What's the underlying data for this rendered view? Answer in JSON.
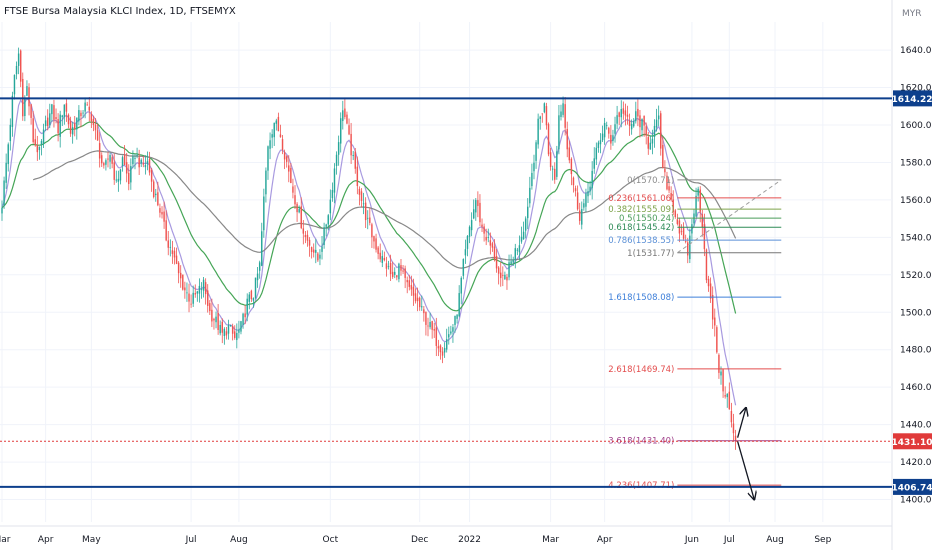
{
  "chart_data": {
    "type": "candlestick",
    "title": "FTSE Bursa Malaysia KLCI Index, 1D, FTSEMYX",
    "currency": "MYR",
    "y_range": [
      1388,
      1655
    ],
    "y_ticks": [
      1400,
      1420,
      1440,
      1460,
      1480,
      1500,
      1520,
      1540,
      1560,
      1580,
      1600,
      1620,
      1640
    ],
    "x_ticks": [
      "Mar",
      "Apr",
      "May",
      "Jul",
      "Aug",
      "Oct",
      "Dec",
      "2022",
      "Mar",
      "Apr",
      "Jun",
      "Jul",
      "Aug",
      "Sep"
    ],
    "x_tick_index": [
      0,
      21,
      43,
      91,
      114,
      158,
      201,
      225,
      264,
      290,
      332,
      350,
      372,
      395
    ],
    "horizontal_levels": [
      {
        "name": "resistance",
        "value": 1614.22,
        "label": "1614.22",
        "color": "#0d3f8c"
      },
      {
        "name": "support",
        "value": 1406.74,
        "label": "1406.74",
        "color": "#0d3f8c"
      },
      {
        "name": "last-price",
        "value": 1431.1,
        "label": "1431.10",
        "color": "#e03a3a"
      }
    ],
    "fibonacci": {
      "x_start_index": 325,
      "x_end_index": 375,
      "levels": [
        {
          "ratio": "0",
          "value": 1570.71,
          "label": "0(1570.71)",
          "color": "#8c8c8c"
        },
        {
          "ratio": "0.236",
          "value": 1561.06,
          "label": "0.236(1561.06)",
          "color": "#e34d4d"
        },
        {
          "ratio": "0.382",
          "value": 1555.09,
          "label": "0.382(1555.09)",
          "color": "#7ea34a"
        },
        {
          "ratio": "0.5",
          "value": 1550.24,
          "label": "0.5(1550.24)",
          "color": "#4a9c5a"
        },
        {
          "ratio": "0.618",
          "value": 1545.42,
          "label": "0.618(1545.42)",
          "color": "#2e8b57"
        },
        {
          "ratio": "0.786",
          "value": 1538.55,
          "label": "0.786(1538.55)",
          "color": "#5a8fd6"
        },
        {
          "ratio": "1",
          "value": 1531.77,
          "label": "1(1531.77)",
          "color": "#777777"
        },
        {
          "ratio": "1.618",
          "value": 1508.08,
          "label": "1.618(1508.08)",
          "color": "#3d7fd9"
        },
        {
          "ratio": "2.618",
          "value": 1469.74,
          "label": "2.618(1469.74)",
          "color": "#e34d4d"
        },
        {
          "ratio": "3.618",
          "value": 1431.4,
          "label": "3.618(1431.40)",
          "color": "#a0408a"
        },
        {
          "ratio": "4.236",
          "value": 1407.71,
          "label": "4.236(1407.71)",
          "color": "#e34d4d"
        }
      ]
    },
    "close_keypoints": [
      [
        0,
        1558
      ],
      [
        3,
        1590
      ],
      [
        6,
        1625
      ],
      [
        8,
        1638
      ],
      [
        10,
        1608
      ],
      [
        12,
        1620
      ],
      [
        15,
        1592
      ],
      [
        18,
        1585
      ],
      [
        21,
        1600
      ],
      [
        24,
        1608
      ],
      [
        27,
        1598
      ],
      [
        30,
        1612
      ],
      [
        33,
        1596
      ],
      [
        36,
        1603
      ],
      [
        40,
        1610
      ],
      [
        43,
        1605
      ],
      [
        46,
        1590
      ],
      [
        49,
        1575
      ],
      [
        52,
        1585
      ],
      [
        55,
        1568
      ],
      [
        58,
        1582
      ],
      [
        61,
        1570
      ],
      [
        64,
        1585
      ],
      [
        67,
        1578
      ],
      [
        70,
        1580
      ],
      [
        73,
        1565
      ],
      [
        76,
        1555
      ],
      [
        79,
        1540
      ],
      [
        82,
        1532
      ],
      [
        85,
        1520
      ],
      [
        88,
        1512
      ],
      [
        91,
        1506
      ],
      [
        94,
        1510
      ],
      [
        97,
        1515
      ],
      [
        100,
        1500
      ],
      [
        103,
        1495
      ],
      [
        106,
        1488
      ],
      [
        109,
        1492
      ],
      [
        112,
        1486
      ],
      [
        115,
        1492
      ],
      [
        118,
        1505
      ],
      [
        121,
        1510
      ],
      [
        124,
        1525
      ],
      [
        126,
        1560
      ],
      [
        128,
        1590
      ],
      [
        131,
        1602
      ],
      [
        134,
        1595
      ],
      [
        137,
        1580
      ],
      [
        140,
        1565
      ],
      [
        143,
        1552
      ],
      [
        146,
        1540
      ],
      [
        149,
        1535
      ],
      [
        152,
        1528
      ],
      [
        155,
        1542
      ],
      [
        158,
        1560
      ],
      [
        161,
        1585
      ],
      [
        164,
        1610
      ],
      [
        167,
        1592
      ],
      [
        170,
        1575
      ],
      [
        173,
        1560
      ],
      [
        176,
        1548
      ],
      [
        179,
        1538
      ],
      [
        182,
        1530
      ],
      [
        185,
        1525
      ],
      [
        188,
        1518
      ],
      [
        191,
        1524
      ],
      [
        194,
        1516
      ],
      [
        197,
        1510
      ],
      [
        200,
        1505
      ],
      [
        203,
        1498
      ],
      [
        206,
        1492
      ],
      [
        209,
        1485
      ],
      [
        212,
        1480
      ],
      [
        215,
        1488
      ],
      [
        218,
        1495
      ],
      [
        220,
        1508
      ],
      [
        222,
        1525
      ],
      [
        225,
        1545
      ],
      [
        228,
        1560
      ],
      [
        231,
        1545
      ],
      [
        234,
        1538
      ],
      [
        237,
        1530
      ],
      [
        240,
        1515
      ],
      [
        243,
        1520
      ],
      [
        246,
        1530
      ],
      [
        249,
        1538
      ],
      [
        252,
        1550
      ],
      [
        255,
        1575
      ],
      [
        258,
        1600
      ],
      [
        261,
        1612
      ],
      [
        263,
        1585
      ],
      [
        266,
        1570
      ],
      [
        268,
        1605
      ],
      [
        270,
        1612
      ],
      [
        272,
        1590
      ],
      [
        275,
        1568
      ],
      [
        278,
        1552
      ],
      [
        281,
        1560
      ],
      [
        284,
        1575
      ],
      [
        287,
        1590
      ],
      [
        290,
        1600
      ],
      [
        293,
        1592
      ],
      [
        296,
        1605
      ],
      [
        299,
        1608
      ],
      [
        302,
        1598
      ],
      [
        305,
        1605
      ],
      [
        308,
        1600
      ],
      [
        311,
        1590
      ],
      [
        314,
        1598
      ],
      [
        316,
        1602
      ],
      [
        318,
        1575
      ],
      [
        321,
        1565
      ],
      [
        324,
        1552
      ],
      [
        327,
        1540
      ],
      [
        330,
        1532
      ],
      [
        333,
        1555
      ],
      [
        335,
        1565
      ],
      [
        337,
        1548
      ],
      [
        339,
        1520
      ],
      [
        341,
        1505
      ],
      [
        343,
        1490
      ],
      [
        345,
        1470
      ],
      [
        347,
        1460
      ],
      [
        349,
        1455
      ],
      [
        351,
        1440
      ],
      [
        353,
        1431.1
      ]
    ],
    "series": [
      {
        "name": "ema-short",
        "color": "#a89ae0"
      },
      {
        "name": "ema-mid",
        "color": "#45a556"
      },
      {
        "name": "ema-long",
        "color": "#888888"
      }
    ],
    "projection_arrows": [
      {
        "from": [
          354,
          1433
        ],
        "to": [
          358,
          1449
        ],
        "color": "#131722"
      },
      {
        "from": [
          354,
          1431
        ],
        "to": [
          362,
          1400
        ],
        "color": "#131722"
      }
    ],
    "total_bars": 410,
    "colors": {
      "up": "#26a69a",
      "down": "#ef5350",
      "grid": "#f0f3fa",
      "axis_text": "#131722"
    }
  }
}
